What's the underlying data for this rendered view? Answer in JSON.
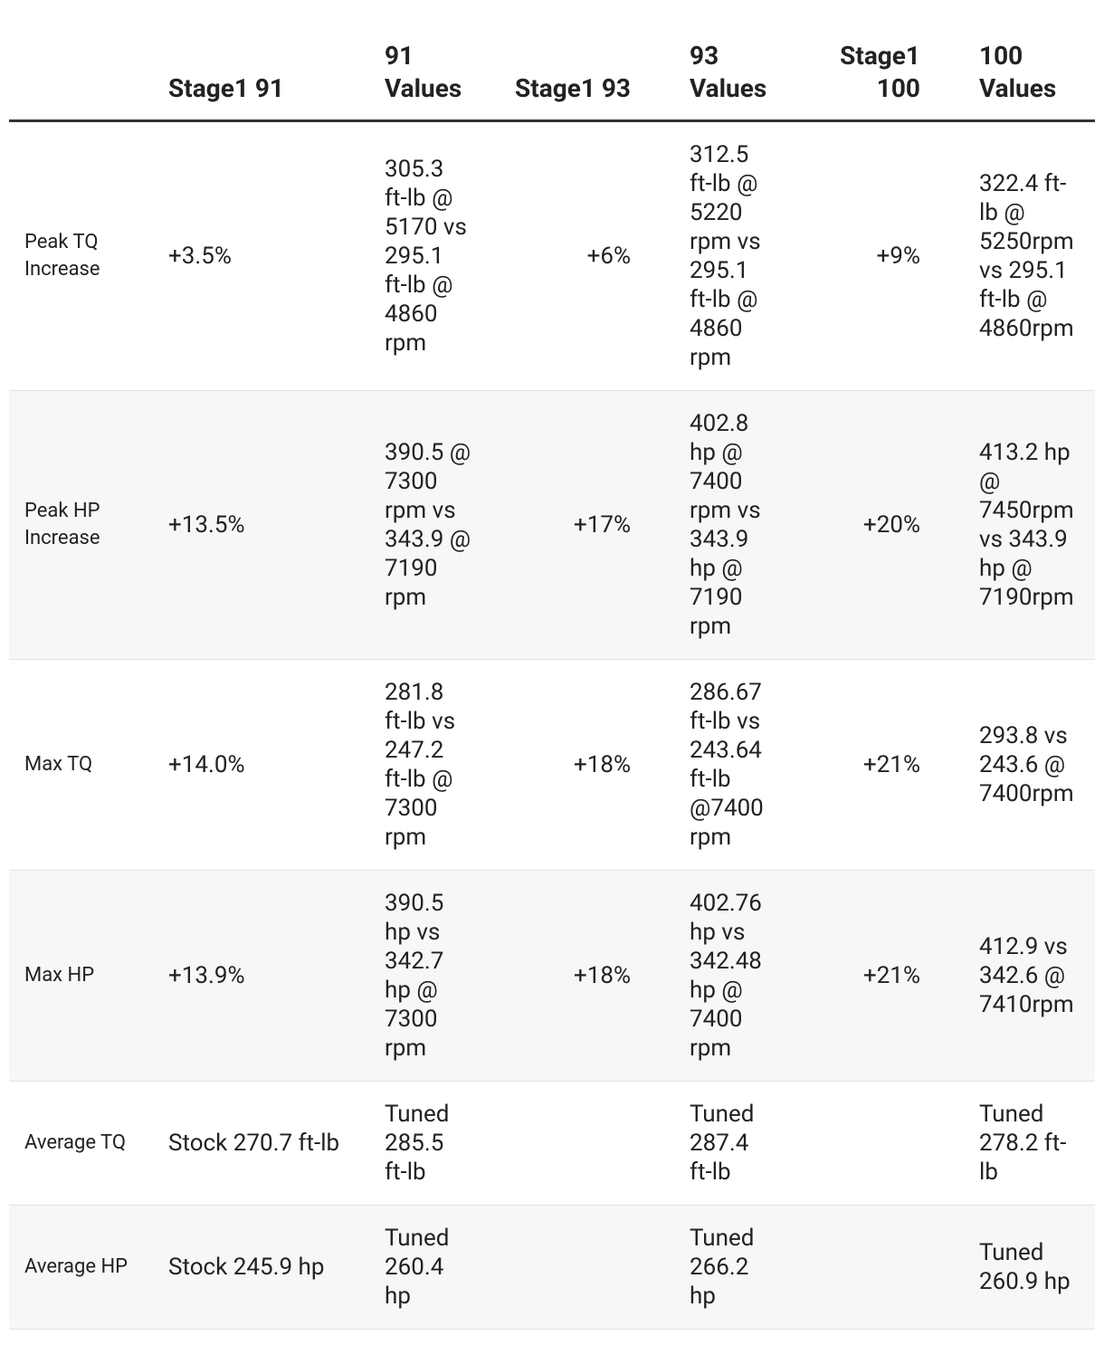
{
  "table": {
    "header": [
      "Stage1 91",
      "91 Values",
      "Stage1 93",
      "93 Values",
      "Stage1 100",
      "100 Values"
    ],
    "rows": [
      [
        "Peak TQ Increase",
        "+3.5%",
        "305.3 ft-lb @ 5170 vs 295.1 ft-lb @ 4860 rpm",
        "+6%",
        "312.5 ft-lb @ 5220 rpm vs 295.1 ft-lb @ 4860 rpm",
        "+9%",
        "322.4 ft-lb @ 5250rpm vs 295.1 ft-lb @ 4860rpm"
      ],
      [
        "Peak HP Increase",
        "+13.5%",
        "390.5 @ 7300 rpm vs 343.9 @ 7190 rpm",
        "+17%",
        "402.8 hp @ 7400 rpm vs 343.9 hp @ 7190 rpm",
        "+20%",
        "413.2 hp @ 7450rpm vs 343.9 hp @ 7190rpm"
      ],
      [
        "Max TQ",
        "+14.0%",
        "281.8 ft-lb vs 247.2 ft-lb @ 7300 rpm",
        "+18%",
        "286.67 ft-lb vs 243.64 ft-lb @7400 rpm",
        "+21%",
        "293.8 vs 243.6 @ 7400rpm"
      ],
      [
        "Max HP",
        "+13.9%",
        "390.5 hp vs 342.7 hp @ 7300 rpm",
        "+18%",
        "402.76 hp vs 342.48 hp @ 7400 rpm",
        "+21%",
        "412.9 vs 342.6 @ 7410rpm"
      ],
      [
        "Average TQ",
        "Stock 270.7 ft-lb",
        "Tuned 285.5 ft-lb",
        null,
        "Tuned 287.4 ft-lb",
        null,
        "Tuned 278.2 ft-lb"
      ],
      [
        "Average HP",
        "Stock 245.9 hp",
        "Tuned 260.4 hp",
        null,
        "Tuned 266.2 hp",
        null,
        "Tuned 260.9 hp"
      ]
    ]
  }
}
